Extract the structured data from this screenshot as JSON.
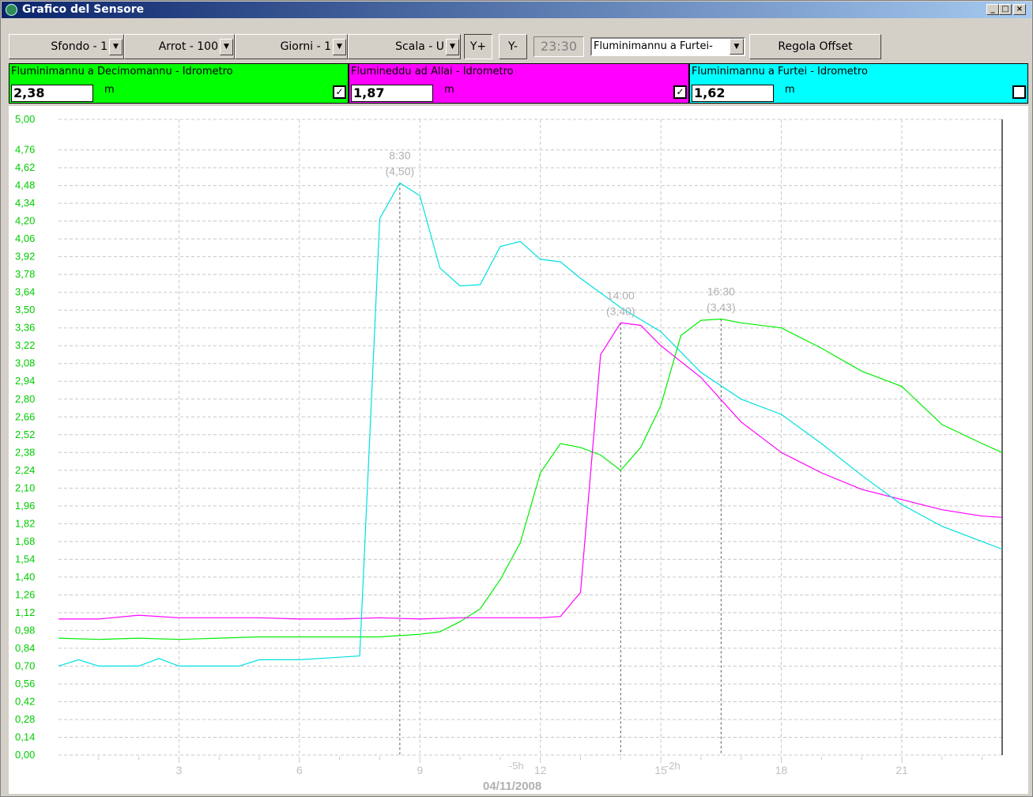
{
  "window": {
    "title": "Grafico del Sensore",
    "controls": [
      "_",
      "□",
      "×"
    ]
  },
  "toolbar": {
    "sfondo": "Sfondo - 1",
    "arrot": "Arrot - 100",
    "giorni": "Giorni - 1",
    "scala": "Scala - U",
    "y_plus": "Y+",
    "y_minus": "Y-",
    "time": "23:30",
    "station_selected": "Fluminimannu a Furtei-",
    "offset_button": "Regola Offset"
  },
  "sensors": [
    {
      "name": "Fluminimannu a Decimomannu - Idrometro",
      "value": "2,38",
      "unit": "m",
      "color": "#00ff00",
      "checked": true,
      "check_glyph": "✓"
    },
    {
      "name": "Flumineddu ad Allai - Idrometro",
      "value": "1,87",
      "unit": "m",
      "color": "#ff00ff",
      "checked": true,
      "check_glyph": "✓"
    },
    {
      "name": "Fluminimannu a Furtei - Idrometro",
      "value": "1,62",
      "unit": "m",
      "color": "#00ffff",
      "checked": false,
      "check_glyph": ""
    }
  ],
  "chart_data": {
    "type": "line",
    "ylim": [
      0,
      5
    ],
    "xlim": [
      0,
      23.5
    ],
    "y_ticks": [
      "0,00",
      "0,14",
      "0,28",
      "0,42",
      "0,56",
      "0,70",
      "0,84",
      "0,98",
      "1,12",
      "1,26",
      "1,40",
      "1,54",
      "1,68",
      "1,82",
      "1,96",
      "2,10",
      "2,24",
      "2,38",
      "2,52",
      "2,66",
      "2,80",
      "2,94",
      "3,08",
      "3,22",
      "3,36",
      "3,50",
      "3,64",
      "3,78",
      "3,92",
      "4,06",
      "4,20",
      "4,34",
      "4,48",
      "4,62",
      "4,76",
      "5,00"
    ],
    "y_tick_values": [
      0,
      0.14,
      0.28,
      0.42,
      0.56,
      0.7,
      0.84,
      0.98,
      1.12,
      1.26,
      1.4,
      1.54,
      1.68,
      1.82,
      1.96,
      2.1,
      2.24,
      2.38,
      2.52,
      2.66,
      2.8,
      2.94,
      3.08,
      3.22,
      3.36,
      3.5,
      3.64,
      3.78,
      3.92,
      4.06,
      4.2,
      4.34,
      4.48,
      4.62,
      4.76,
      5.0
    ],
    "x_ticks": [
      {
        "x": 3,
        "label": "3"
      },
      {
        "x": 6,
        "label": "6"
      },
      {
        "x": 9,
        "label": "9"
      },
      {
        "x": 12,
        "label": "12"
      },
      {
        "x": 15,
        "label": "15"
      },
      {
        "x": 18,
        "label": "18"
      },
      {
        "x": 21,
        "label": "21"
      }
    ],
    "x_overlay_labels": [
      {
        "x": 11.4,
        "label": "-5h"
      },
      {
        "x": 15.3,
        "label": "-2h"
      }
    ],
    "date_label": "04/11/2008",
    "current_time_x": 23.5,
    "markers": [
      {
        "x": 8.5,
        "y": 4.5,
        "time": "8:30",
        "value": "(4,50)"
      },
      {
        "x": 14.0,
        "y": 3.4,
        "time": "14:00",
        "value": "(3,40)"
      },
      {
        "x": 16.5,
        "y": 3.43,
        "time": "16:30",
        "value": "(3,43)"
      }
    ],
    "series": [
      {
        "color": "#00ee00",
        "x": [
          0,
          1,
          2,
          3,
          4,
          5,
          6,
          7,
          8,
          9,
          9.5,
          10,
          10.5,
          11,
          11.5,
          12,
          12.5,
          13,
          13.5,
          14,
          14.5,
          15,
          15.5,
          16,
          16.5,
          17,
          18,
          19,
          20,
          21,
          21.5,
          22,
          23,
          23.5
        ],
        "y": [
          0.92,
          0.91,
          0.92,
          0.91,
          0.92,
          0.93,
          0.93,
          0.93,
          0.93,
          0.95,
          0.97,
          1.05,
          1.15,
          1.38,
          1.67,
          2.22,
          2.45,
          2.42,
          2.36,
          2.24,
          2.42,
          2.75,
          3.3,
          3.42,
          3.43,
          3.4,
          3.36,
          3.2,
          3.02,
          2.9,
          2.75,
          2.6,
          2.45,
          2.38
        ]
      },
      {
        "color": "#ff00ff",
        "x": [
          0,
          1,
          2,
          3,
          4,
          5,
          6,
          7,
          8,
          9,
          10,
          11,
          12,
          12.5,
          13,
          13.5,
          14,
          14.5,
          15,
          16,
          17,
          18,
          19,
          20,
          21,
          22,
          23,
          23.5
        ],
        "y": [
          1.07,
          1.07,
          1.1,
          1.08,
          1.08,
          1.08,
          1.07,
          1.07,
          1.08,
          1.07,
          1.08,
          1.08,
          1.08,
          1.09,
          1.28,
          3.15,
          3.4,
          3.38,
          3.22,
          2.97,
          2.62,
          2.38,
          2.22,
          2.09,
          2.01,
          1.93,
          1.88,
          1.87
        ]
      },
      {
        "color": "#00e0e0",
        "x": [
          0,
          0.5,
          1,
          2,
          2.5,
          3,
          4,
          4.5,
          5,
          6,
          7,
          7.5,
          8,
          8.5,
          9,
          9.5,
          10,
          10.5,
          11,
          11.5,
          12,
          12.5,
          13,
          14,
          15,
          16,
          17,
          18,
          19,
          20,
          21,
          22,
          23,
          23.5
        ],
        "y": [
          0.7,
          0.75,
          0.7,
          0.7,
          0.76,
          0.7,
          0.7,
          0.7,
          0.75,
          0.75,
          0.77,
          0.78,
          4.22,
          4.5,
          4.4,
          3.83,
          3.69,
          3.7,
          4.0,
          4.04,
          3.9,
          3.88,
          3.75,
          3.52,
          3.33,
          3.01,
          2.8,
          2.68,
          2.45,
          2.2,
          1.97,
          1.8,
          1.68,
          1.62
        ]
      }
    ]
  }
}
